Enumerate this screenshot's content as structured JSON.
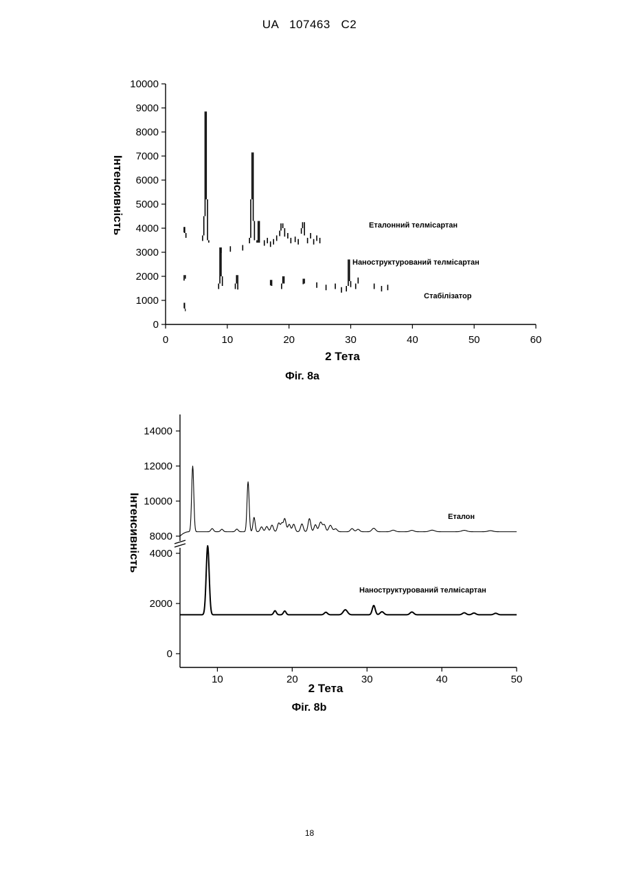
{
  "page": {
    "header": "UA   107463   C2",
    "page_number": "18"
  },
  "chart_data": [
    {
      "type": "line",
      "caption": "Фіг. 8а",
      "xlabel": "2 Тета",
      "ylabel": "Інтенсивність",
      "xlim": [
        0,
        60
      ],
      "ylim": [
        0,
        10000
      ],
      "x_ticks": [
        "0",
        "10",
        "20",
        "30",
        "40",
        "50",
        "60"
      ],
      "y_ticks": [
        "0",
        "1000",
        "2000",
        "3000",
        "4000",
        "5000",
        "6000",
        "7000",
        "8000",
        "9000",
        "10000"
      ],
      "series": [
        {
          "name": "Еталонний телмісартан",
          "style": "fragmented",
          "x": [
            3.0,
            3.1,
            3.3,
            6.0,
            6.2,
            6.4,
            6.6,
            6.8,
            7.0,
            9.0,
            10.5,
            12.5,
            13.6,
            13.8,
            14.0,
            14.2,
            14.4,
            14.8,
            15.0,
            15.2,
            16.0,
            16.5,
            17.0,
            17.5,
            18.0,
            18.5,
            18.7,
            19.0,
            19.3,
            19.8,
            20.3,
            21.0,
            21.5,
            22.0,
            22.2,
            22.5,
            23.0,
            23.5,
            24.0,
            24.5,
            25.0
          ],
          "y": [
            4050,
            3800,
            3600,
            3700,
            4500,
            8850,
            5200,
            3500,
            3400,
            3200,
            3250,
            3300,
            3600,
            5200,
            7150,
            4300,
            3500,
            3400,
            4300,
            3400,
            3500,
            3600,
            3450,
            3550,
            3700,
            3900,
            4200,
            4000,
            3650,
            3800,
            3600,
            3650,
            3550,
            4000,
            4250,
            3700,
            3600,
            3800,
            3550,
            3700,
            3600
          ]
        },
        {
          "name": "Наноструктурований телмісартан",
          "style": "fragmented",
          "x": [
            3.0,
            3.2,
            8.6,
            8.8,
            9.0,
            9.2,
            11.3,
            11.5,
            11.7,
            17.0,
            17.2,
            18.8,
            19.0,
            19.2,
            22.3,
            22.5,
            24.5,
            26.0,
            27.5,
            28.5,
            29.3,
            29.6,
            29.8,
            30.0,
            30.8,
            31.2,
            33.8,
            35.0,
            36.0
          ],
          "y": [
            2050,
            1900,
            1700,
            3200,
            2000,
            1600,
            1700,
            2050,
            1450,
            1850,
            1600,
            1700,
            2000,
            1700,
            1900,
            1700,
            1750,
            1650,
            1700,
            1550,
            1600,
            2700,
            1800,
            1550,
            1700,
            1950,
            1700,
            1600,
            1650
          ]
        },
        {
          "name": "Стабілізатор",
          "style": "fragmented",
          "x": [
            3.0,
            3.1,
            3.2
          ],
          "y": [
            900,
            650,
            550
          ]
        }
      ]
    },
    {
      "type": "line",
      "caption": "Фіг. 8b",
      "xlabel": "2 Тета",
      "ylabel": "Інтенсивність",
      "xlim": [
        5,
        50
      ],
      "y_ticks_upper": [
        "8000",
        "10000",
        "12000",
        "14000"
      ],
      "y_ticks_lower": [
        "0",
        "2000",
        "4000"
      ],
      "x_ticks": [
        "10",
        "20",
        "30",
        "40",
        "50"
      ],
      "series": [
        {
          "name": "Еталон",
          "axis_segment": "upper",
          "baseline": 8250,
          "start": {
            "x": 5.0,
            "y": 8000
          },
          "peaks": [
            {
              "x": 6.7,
              "height": 3750,
              "width": 0.2
            },
            {
              "x": 9.3,
              "height": 180,
              "width": 0.25
            },
            {
              "x": 10.6,
              "height": 140,
              "width": 0.25
            },
            {
              "x": 12.6,
              "height": 150,
              "width": 0.25
            },
            {
              "x": 14.1,
              "height": 2850,
              "width": 0.2
            },
            {
              "x": 14.9,
              "height": 820,
              "width": 0.2
            },
            {
              "x": 15.9,
              "height": 280,
              "width": 0.25
            },
            {
              "x": 16.6,
              "height": 300,
              "width": 0.25
            },
            {
              "x": 17.3,
              "height": 380,
              "width": 0.25
            },
            {
              "x": 18.2,
              "height": 500,
              "width": 0.25
            },
            {
              "x": 18.6,
              "height": 420,
              "width": 0.2
            },
            {
              "x": 19.0,
              "height": 750,
              "width": 0.25
            },
            {
              "x": 19.6,
              "height": 420,
              "width": 0.25
            },
            {
              "x": 20.2,
              "height": 430,
              "width": 0.25
            },
            {
              "x": 21.3,
              "height": 450,
              "width": 0.25
            },
            {
              "x": 22.3,
              "height": 750,
              "width": 0.25
            },
            {
              "x": 23.1,
              "height": 400,
              "width": 0.25
            },
            {
              "x": 23.8,
              "height": 550,
              "width": 0.3
            },
            {
              "x": 24.3,
              "height": 380,
              "width": 0.25
            },
            {
              "x": 25.1,
              "height": 370,
              "width": 0.3
            },
            {
              "x": 25.8,
              "height": 170,
              "width": 0.3
            },
            {
              "x": 28.0,
              "height": 180,
              "width": 0.3
            },
            {
              "x": 28.8,
              "height": 140,
              "width": 0.3
            },
            {
              "x": 30.9,
              "height": 200,
              "width": 0.35
            },
            {
              "x": 33.5,
              "height": 90,
              "width": 0.4
            },
            {
              "x": 36.0,
              "height": 80,
              "width": 0.4
            },
            {
              "x": 38.7,
              "height": 90,
              "width": 0.5
            },
            {
              "x": 43.0,
              "height": 80,
              "width": 0.5
            },
            {
              "x": 46.5,
              "height": 60,
              "width": 0.5
            }
          ]
        },
        {
          "name": "Наноструктурований телмісартан",
          "axis_segment": "lower",
          "baseline": 1550,
          "peaks": [
            {
              "x": 8.7,
              "height": 2750,
              "width": 0.28
            },
            {
              "x": 17.7,
              "height": 160,
              "width": 0.25
            },
            {
              "x": 19.0,
              "height": 150,
              "width": 0.25
            },
            {
              "x": 24.5,
              "height": 100,
              "width": 0.3
            },
            {
              "x": 27.1,
              "height": 200,
              "width": 0.4
            },
            {
              "x": 30.9,
              "height": 370,
              "width": 0.28
            },
            {
              "x": 32.0,
              "height": 120,
              "width": 0.35
            },
            {
              "x": 36.0,
              "height": 110,
              "width": 0.35
            },
            {
              "x": 43.0,
              "height": 80,
              "width": 0.35
            },
            {
              "x": 44.3,
              "height": 70,
              "width": 0.35
            },
            {
              "x": 47.2,
              "height": 60,
              "width": 0.35
            }
          ]
        }
      ]
    }
  ]
}
